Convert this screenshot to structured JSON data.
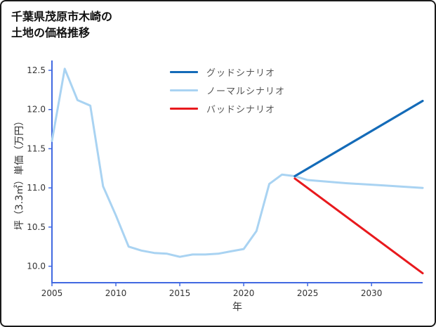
{
  "page": {
    "title_line1": "千葉県茂原市木崎の",
    "title_line2": "土地の価格推移"
  },
  "chart_data": {
    "type": "line",
    "title": "千葉県茂原市木崎の土地の価格推移",
    "xlabel": "年",
    "ylabel": "坪（3.3㎡）単価（万円）",
    "xlim": [
      2005,
      2034
    ],
    "ylim": [
      9.79,
      12.59
    ],
    "xticks": [
      2005,
      2010,
      2015,
      2020,
      2025,
      2030
    ],
    "xtick_labels": [
      "2005",
      "2010",
      "2015",
      "2020",
      "2025",
      "2030"
    ],
    "yticks": [
      10.0,
      10.5,
      11.0,
      11.5,
      12.0,
      12.5
    ],
    "ytick_labels": [
      "10.0",
      "10.5",
      "11.0",
      "11.5",
      "12.0",
      "12.5"
    ],
    "grid": false,
    "legend_position": "upper-center-inside",
    "axis_color": "#4169e1",
    "tick_label_color": "#333333",
    "series": [
      {
        "id": "good-scenario",
        "name": "グッドシナリオ",
        "color": "#146bb8",
        "width": 3.2,
        "zorder": 3,
        "x": [
          2024,
          2034
        ],
        "y": [
          11.15,
          12.11
        ]
      },
      {
        "id": "normal-scenario",
        "name": "ノーマルシナリオ",
        "color": "#a9d3f2",
        "width": 3,
        "zorder": 1,
        "x": [
          2005,
          2006,
          2007,
          2008,
          2009,
          2010,
          2011,
          2012,
          2013,
          2014,
          2015,
          2016,
          2017,
          2018,
          2019,
          2020,
          2021,
          2022,
          2023,
          2024,
          2025,
          2028,
          2031,
          2034
        ],
        "y": [
          11.6,
          12.52,
          12.12,
          12.05,
          11.02,
          10.65,
          10.25,
          10.2,
          10.17,
          10.16,
          10.12,
          10.15,
          10.15,
          10.16,
          10.19,
          10.22,
          10.45,
          11.05,
          11.17,
          11.15,
          11.1,
          11.06,
          11.03,
          11.0
        ]
      },
      {
        "id": "bad-scenario",
        "name": "バッドシナリオ",
        "color": "#e8191d",
        "width": 3,
        "zorder": 2,
        "x": [
          2024,
          2034
        ],
        "y": [
          11.12,
          9.91
        ]
      }
    ]
  }
}
